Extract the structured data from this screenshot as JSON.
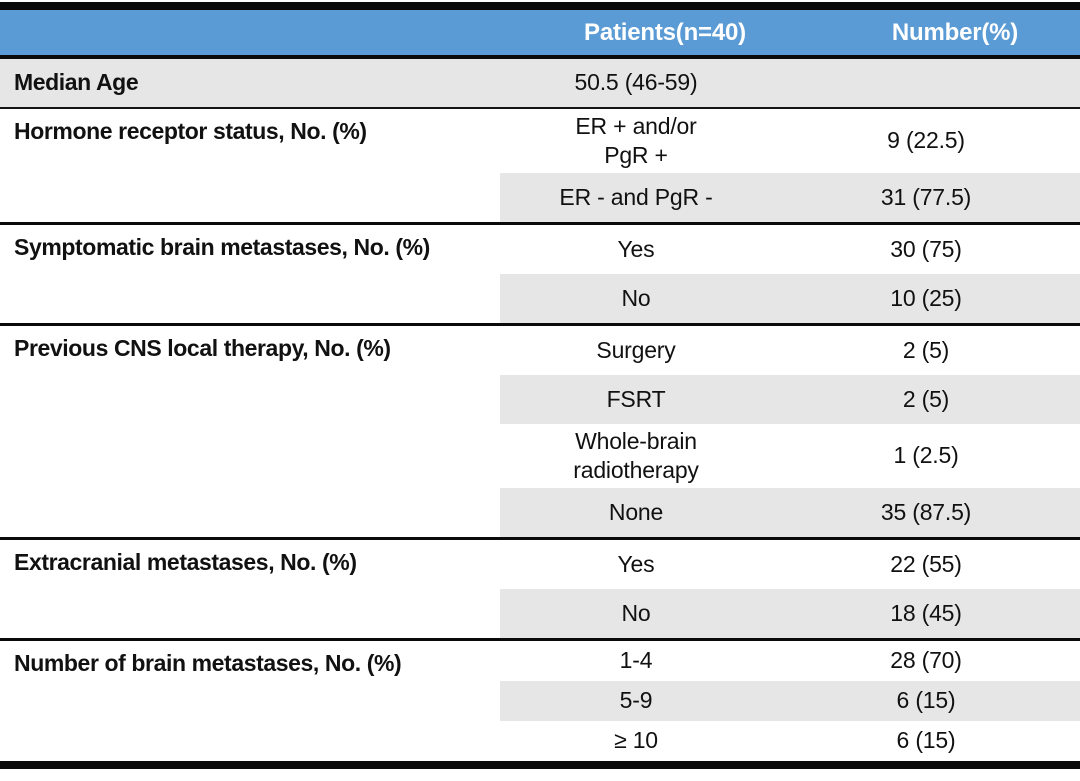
{
  "table": {
    "colors": {
      "header_bg": "#5b9bd5",
      "header_text": "#ffffff",
      "row_shade": "#e7e6e6",
      "rule": "#0a0a0a"
    },
    "header": {
      "col_patients": "Patients(n=40)",
      "col_number": "Number(%)"
    },
    "sections": [
      {
        "label": "Median Age",
        "rows": [
          {
            "value": "50.5 (46-59)",
            "number": ""
          }
        ]
      },
      {
        "label": "Hormone receptor status, No. (%)",
        "rows": [
          {
            "value": "ER + and/or\nPgR +",
            "number": "9 (22.5)"
          },
          {
            "value": "ER - and PgR -",
            "number": "31 (77.5)"
          }
        ]
      },
      {
        "label": "Symptomatic brain metastases, No. (%)",
        "rows": [
          {
            "value": "Yes",
            "number": "30 (75)"
          },
          {
            "value": "No",
            "number": "10 (25)"
          }
        ]
      },
      {
        "label": "Previous CNS local therapy, No. (%)",
        "rows": [
          {
            "value": "Surgery",
            "number": "2 (5)"
          },
          {
            "value": "FSRT",
            "number": "2 (5)"
          },
          {
            "value": "Whole-brain\nradiotherapy",
            "number": "1 (2.5)"
          },
          {
            "value": "None",
            "number": "35 (87.5)"
          }
        ]
      },
      {
        "label": "Extracranial metastases, No. (%)",
        "rows": [
          {
            "value": "Yes",
            "number": "22 (55)"
          },
          {
            "value": "No",
            "number": "18 (45)"
          }
        ]
      },
      {
        "label": "Number of brain metastases, No. (%)",
        "rows": [
          {
            "value": "1-4",
            "number": "28 (70)"
          },
          {
            "value": "5-9",
            "number": "6 (15)"
          },
          {
            "value": "≥ 10",
            "number": "6 (15)"
          }
        ]
      }
    ]
  }
}
